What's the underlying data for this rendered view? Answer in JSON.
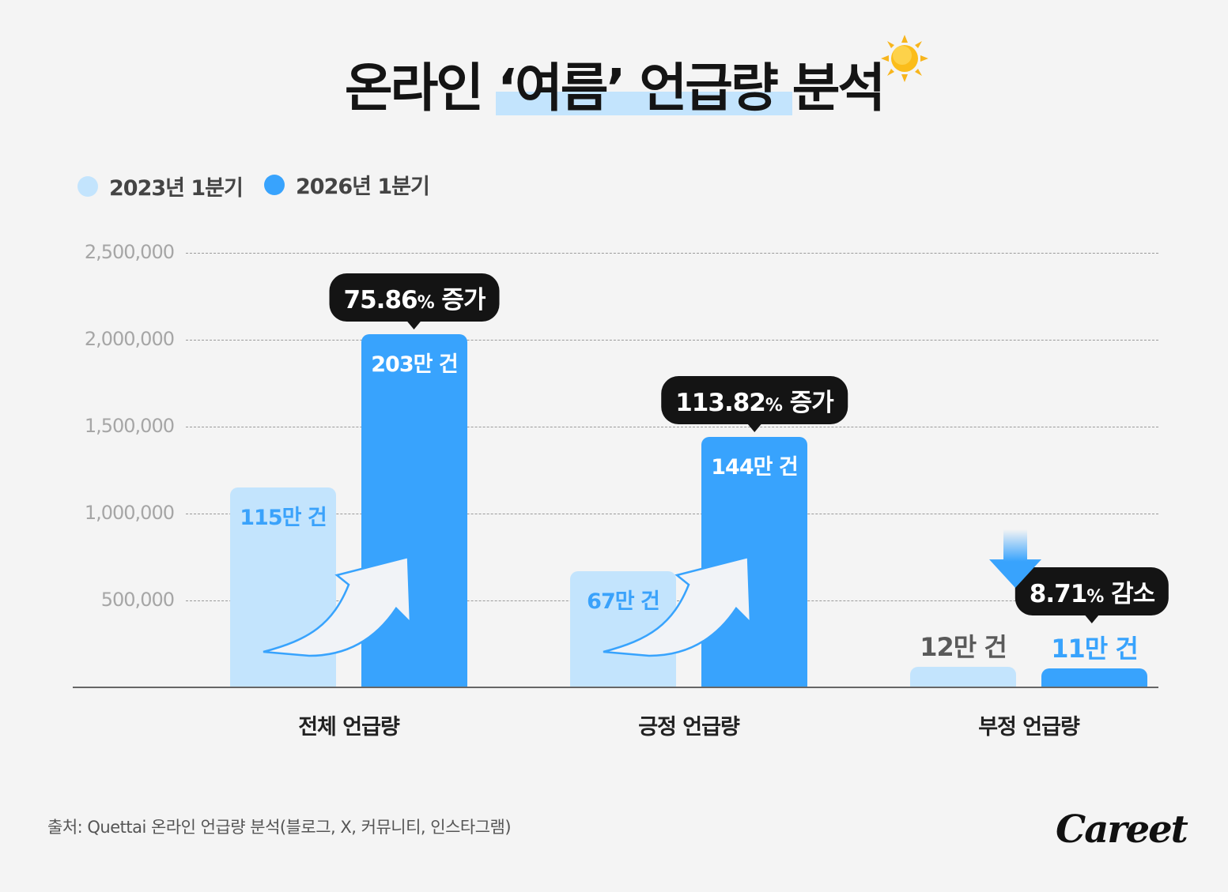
{
  "title": "온라인 ‘여름’ 언급량 분석",
  "source": "출처: Quettai 온라인 언급량 분석(블로그, X, 커뮤니티, 인스타그램)",
  "logo": "Careet",
  "chart_data": {
    "type": "bar",
    "title": "온라인 ‘여름’ 언급량 분석",
    "categories": [
      "전체 언급량",
      "긍정 언급량",
      "부정 언급량"
    ],
    "series": [
      {
        "name": "2023년 1분기",
        "color": "#c3e4fd",
        "label_color": "#3aa2fb",
        "values": [
          1150000,
          670000,
          120000
        ],
        "labels": [
          "115만 건",
          "67만 건",
          "12만 건"
        ]
      },
      {
        "name": "2026년 1분기",
        "color": "#38a3fd",
        "label_color": "#ffffff",
        "values": [
          2030000,
          1440000,
          110000
        ],
        "labels": [
          "203만 건",
          "144만 건",
          "11만 건"
        ]
      }
    ],
    "changes": [
      {
        "value": "75.86",
        "unit": "%",
        "word": "증가",
        "direction": "up"
      },
      {
        "value": "113.82",
        "unit": "%",
        "word": "증가",
        "direction": "up"
      },
      {
        "value": "8.71",
        "unit": "%",
        "word": "감소",
        "direction": "down"
      }
    ],
    "yticks": [
      "2,500,000",
      "2,000,000",
      "1,500,000",
      "1,000,000",
      "500,000"
    ],
    "ytick_values": [
      2500000,
      2000000,
      1500000,
      1000000,
      500000
    ],
    "ylim": [
      0,
      2500000
    ],
    "grid": true,
    "legend_position": "top-left",
    "xlabel": "",
    "ylabel": ""
  }
}
